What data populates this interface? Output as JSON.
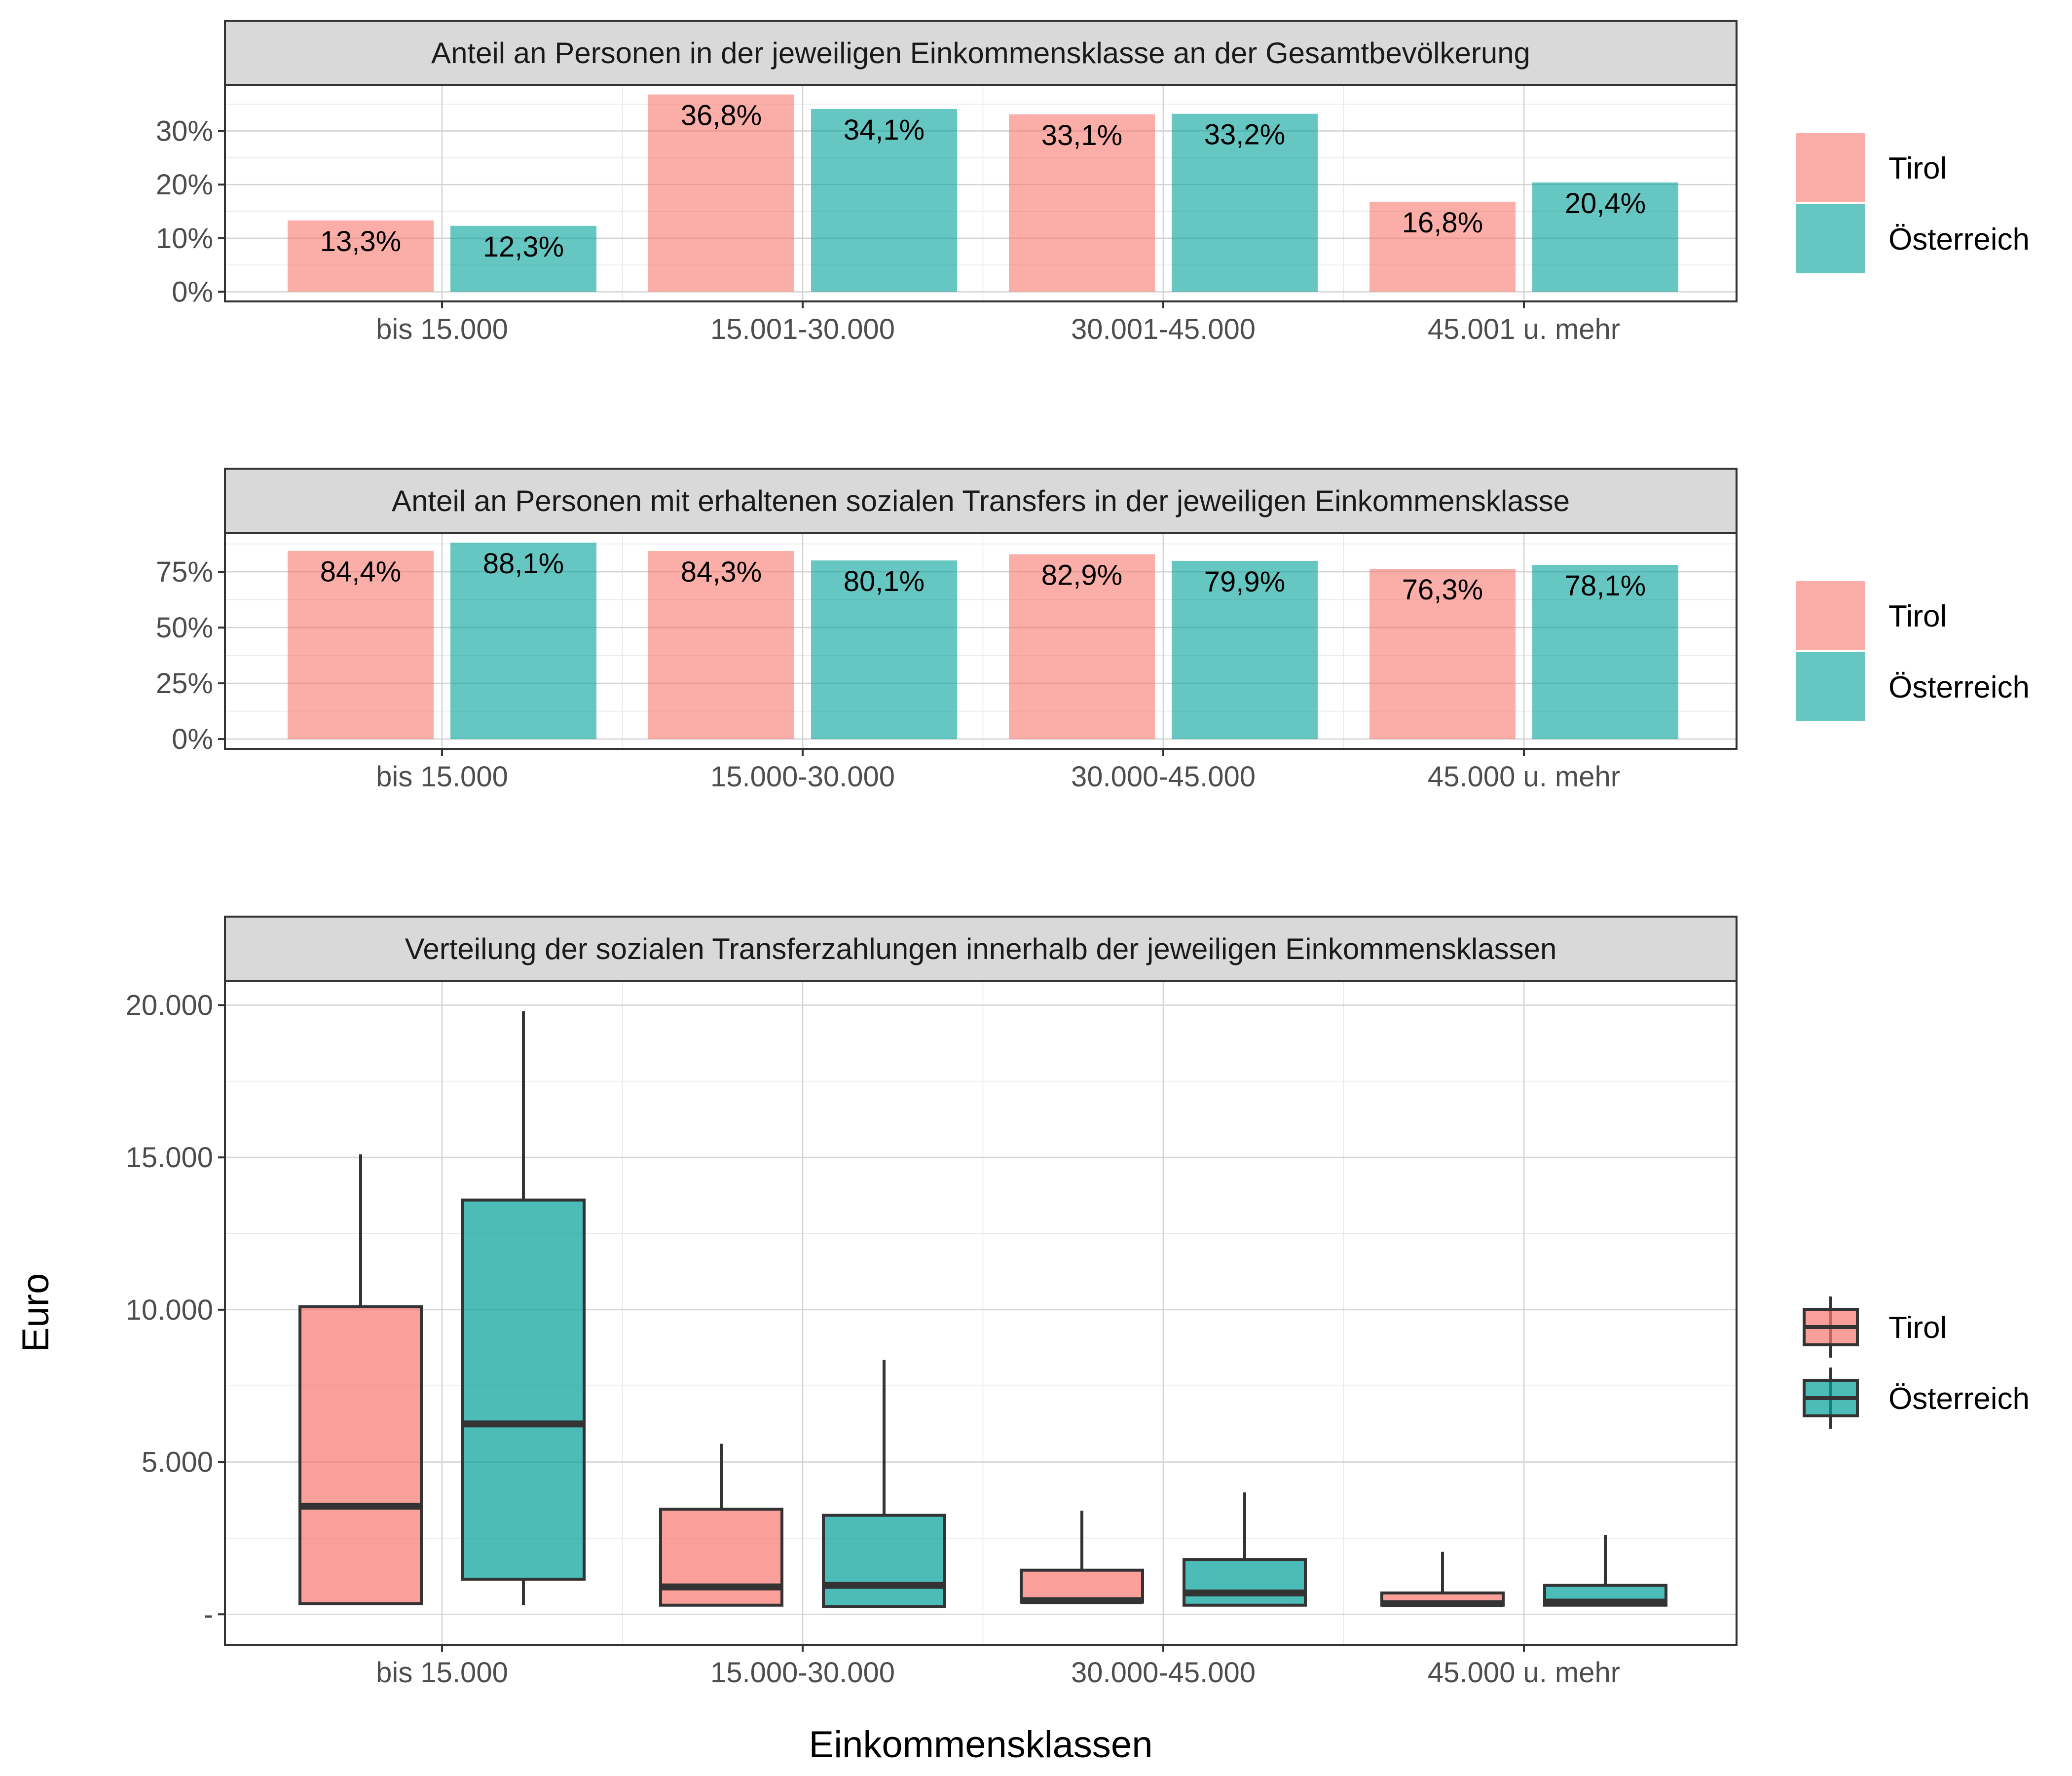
{
  "colors": {
    "Tirol": "#f8766d",
    "Österreich": "#00a09a"
  },
  "legend": {
    "items": [
      "Tirol",
      "Österreich"
    ]
  },
  "axis_titles": {
    "x": "Einkommensklassen",
    "y": "Euro"
  },
  "chart_data": [
    {
      "type": "bar",
      "title": "Anteil an Personen in der jeweiligen Einkommensklasse an der Gesamtbevölkerung",
      "categories": [
        "bis 15.000",
        "15.001-30.000",
        "30.001-45.000",
        "45.001 u. mehr"
      ],
      "series": [
        {
          "name": "Tirol",
          "values": [
            13.3,
            36.8,
            33.1,
            16.8
          ],
          "labels": [
            "13,3%",
            "36,8%",
            "33,1%",
            "16,8%"
          ]
        },
        {
          "name": "Österreich",
          "values": [
            12.3,
            34.1,
            33.2,
            20.4
          ],
          "labels": [
            "12,3%",
            "34,1%",
            "33,2%",
            "20,4%"
          ]
        }
      ],
      "ylim": [
        -1.8,
        38.6
      ],
      "yticks": [
        0,
        10,
        20,
        30
      ],
      "yticklabels": [
        "0%",
        "10%",
        "20%",
        "30%"
      ],
      "grid": true
    },
    {
      "type": "bar",
      "title": "Anteil an Personen mit erhaltenen sozialen Transfers in der jeweiligen Einkommensklasse",
      "categories": [
        "bis 15.000",
        "15.000-30.000",
        "30.000-45.000",
        "45.000 u. mehr"
      ],
      "series": [
        {
          "name": "Tirol",
          "values": [
            84.4,
            84.3,
            82.9,
            76.3
          ],
          "labels": [
            "84,4%",
            "84,3%",
            "82,9%",
            "76,3%"
          ]
        },
        {
          "name": "Österreich",
          "values": [
            88.1,
            80.1,
            79.9,
            78.1
          ],
          "labels": [
            "88,1%",
            "80,1%",
            "79,9%",
            "78,1%"
          ]
        }
      ],
      "ylim": [
        -4.4,
        92.5
      ],
      "yticks": [
        0,
        25,
        50,
        75
      ],
      "yticklabels": [
        "0%",
        "25%",
        "50%",
        "75%"
      ],
      "grid": true
    },
    {
      "type": "boxplot",
      "title": "Verteilung der sozialen Transferzahlungen innerhalb der jeweiligen Einkommensklassen",
      "categories": [
        "bis 15.000",
        "15.000-30.000",
        "30.000-45.000",
        "45.000 u. mehr"
      ],
      "xlabel": "Einkommensklassen",
      "ylabel": "Euro",
      "series": [
        {
          "name": "Tirol",
          "boxes": [
            {
              "min": 300,
              "q1": 350,
              "median": 3550,
              "q3": 10100,
              "max": 15100
            },
            {
              "min": 300,
              "q1": 300,
              "median": 900,
              "q3": 3450,
              "max": 5600
            },
            {
              "min": 400,
              "q1": 400,
              "median": 450,
              "q3": 1450,
              "max": 3400
            },
            {
              "min": 300,
              "q1": 300,
              "median": 350,
              "q3": 700,
              "max": 2050
            }
          ]
        },
        {
          "name": "Österreich",
          "boxes": [
            {
              "min": 300,
              "q1": 1150,
              "median": 6250,
              "q3": 13600,
              "max": 19800
            },
            {
              "min": 250,
              "q1": 250,
              "median": 950,
              "q3": 3250,
              "max": 8350
            },
            {
              "min": 300,
              "q1": 300,
              "median": 700,
              "q3": 1800,
              "max": 4000
            },
            {
              "min": 300,
              "q1": 300,
              "median": 400,
              "q3": 950,
              "max": 2600
            }
          ]
        }
      ],
      "ylim": [
        -1000,
        20800
      ],
      "yticks": [
        0,
        5000,
        10000,
        15000,
        20000
      ],
      "yticklabels": [
        "-",
        "5.000",
        "10.000",
        "15.000",
        "20.000"
      ],
      "grid": true
    }
  ]
}
